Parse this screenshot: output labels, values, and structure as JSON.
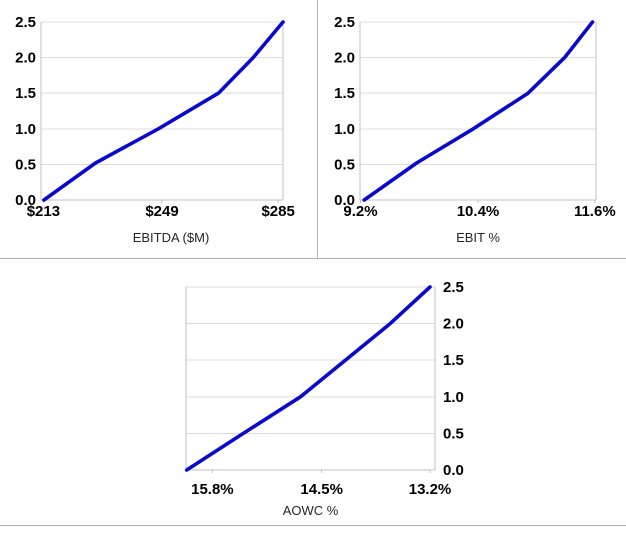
{
  "palette": {
    "background": "#ffffff",
    "grid_color": "#dcdcdc",
    "axis_color": "#c2c2c2",
    "divider_color": "#b4b4b4",
    "line_blue": "#0a0acd",
    "tick_text": "#000000",
    "title_text": "#262626"
  },
  "chart_data": [
    {
      "id": "ebitda-sensitivity",
      "type": "line",
      "title": "",
      "xlabel": "EBITDA ($M)",
      "ylabel": "",
      "ylim": [
        0,
        2.5
      ],
      "grid": true,
      "y_axis_side": "left",
      "y_ticks": [
        {
          "label": "0.0",
          "value": 0.0
        },
        {
          "label": "0.5",
          "value": 0.5
        },
        {
          "label": "1.0",
          "value": 1.0
        },
        {
          "label": "1.5",
          "value": 1.5
        },
        {
          "label": "2.0",
          "value": 2.0
        },
        {
          "label": "2.5",
          "value": 2.5
        }
      ],
      "x_ticks": [
        {
          "label": "$213",
          "f": 0.01
        },
        {
          "label": "$249",
          "f": 0.5
        },
        {
          "label": "$285",
          "f": 0.98
        }
      ],
      "line": {
        "color": "#0a0acd",
        "width": 3.6,
        "points": [
          [
            0.012,
            0.0
          ],
          [
            0.225,
            0.52
          ],
          [
            0.485,
            1.0
          ],
          [
            0.733,
            1.5
          ],
          [
            0.877,
            2.0
          ],
          [
            1.0,
            2.5
          ]
        ]
      },
      "title_dx": 9
    },
    {
      "id": "ebit-sensitivity",
      "type": "line",
      "title": "",
      "xlabel": "EBIT %",
      "ylabel": "",
      "ylim": [
        0,
        2.5
      ],
      "grid": true,
      "y_axis_side": "left",
      "y_ticks": [
        {
          "label": "0.0",
          "value": 0.0
        },
        {
          "label": "0.5",
          "value": 0.5
        },
        {
          "label": "1.0",
          "value": 1.0
        },
        {
          "label": "1.5",
          "value": 1.5
        },
        {
          "label": "2.0",
          "value": 2.0
        },
        {
          "label": "2.5",
          "value": 2.5
        }
      ],
      "x_ticks": [
        {
          "label": "9.2%",
          "f": 0.002
        },
        {
          "label": "10.4%",
          "f": 0.5
        },
        {
          "label": "11.6%",
          "f": 0.995
        }
      ],
      "line": {
        "color": "#0a0acd",
        "width": 3.6,
        "points": [
          [
            0.018,
            0.0
          ],
          [
            0.24,
            0.52
          ],
          [
            0.48,
            1.0
          ],
          [
            0.712,
            1.5
          ],
          [
            0.867,
            2.0
          ],
          [
            0.985,
            2.5
          ]
        ]
      },
      "title_dx": 0
    },
    {
      "id": "aowc-sensitivity",
      "type": "line",
      "title": "",
      "xlabel": "AOWC %",
      "ylabel": "",
      "ylim": [
        0,
        2.5
      ],
      "grid": true,
      "y_axis_side": "right",
      "x_axis_direction": "descending",
      "y_ticks": [
        {
          "label": "0.0",
          "value": 0.0
        },
        {
          "label": "0.5",
          "value": 0.5
        },
        {
          "label": "1.0",
          "value": 1.0
        },
        {
          "label": "1.5",
          "value": 1.5
        },
        {
          "label": "2.0",
          "value": 2.0
        },
        {
          "label": "2.5",
          "value": 2.5
        }
      ],
      "x_ticks": [
        {
          "label": "15.8%",
          "f": 0.106
        },
        {
          "label": "14.5%",
          "f": 0.545
        },
        {
          "label": "13.2%",
          "f": 0.98
        }
      ],
      "line": {
        "color": "#0a0acd",
        "width": 3.6,
        "points": [
          [
            0.003,
            0.0
          ],
          [
            0.23,
            0.5
          ],
          [
            0.46,
            1.0
          ],
          [
            0.64,
            1.5
          ],
          [
            0.82,
            2.0
          ],
          [
            0.98,
            2.5
          ]
        ]
      },
      "title_dx": 0
    }
  ]
}
